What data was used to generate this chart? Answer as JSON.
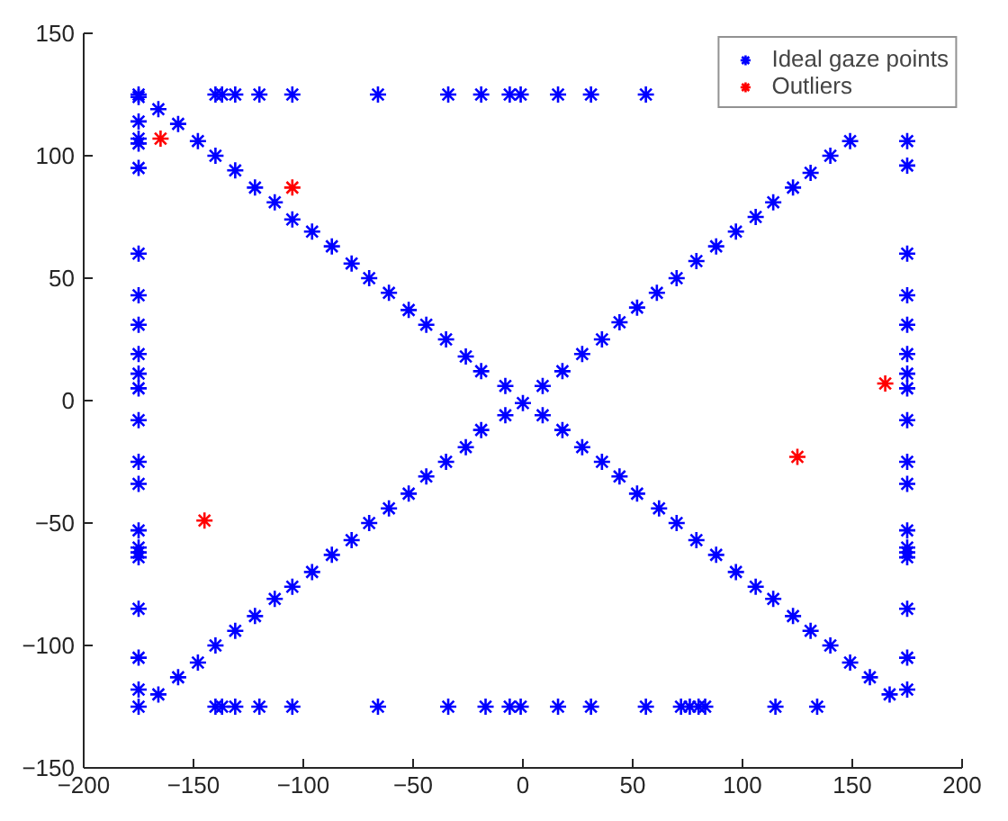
{
  "chart_data": {
    "type": "scatter",
    "xlim": [
      -200,
      200
    ],
    "ylim": [
      -150,
      150
    ],
    "xticks": [
      -200,
      -150,
      -100,
      -50,
      0,
      50,
      100,
      150,
      200
    ],
    "yticks": [
      -150,
      -100,
      -50,
      0,
      50,
      100,
      150
    ],
    "marker": "cross",
    "legend": "top right",
    "series": [
      {
        "name": "Ideal gaze points",
        "color": "#0000ff",
        "x": [
          -140,
          -137,
          -131,
          -120,
          -105,
          -66,
          -34,
          -19,
          -6,
          -1,
          16,
          31,
          56,
          -140,
          -137,
          -131,
          -120,
          -105,
          -66,
          -34,
          -17,
          -6,
          -1,
          16,
          31,
          56,
          72,
          76,
          80,
          83,
          115,
          134,
          -175,
          -175,
          -175,
          -175,
          -175,
          -175,
          -175,
          -175,
          -175,
          -175,
          -175,
          -175,
          -175,
          -175,
          -175,
          -175,
          -175,
          -175,
          -175,
          -175,
          -175,
          -175,
          -175,
          175,
          175,
          175,
          175,
          175,
          175,
          175,
          175,
          175,
          175,
          175,
          175,
          175,
          175,
          175,
          175,
          175,
          175,
          -166,
          -157,
          -148,
          -140,
          -131,
          -122,
          -113,
          -105,
          -96,
          -87,
          -78,
          -70,
          -61,
          -52,
          -44,
          -35,
          -26,
          -19,
          -8,
          0,
          9,
          18,
          27,
          36,
          44,
          52,
          62,
          70,
          79,
          88,
          97,
          106,
          114,
          123,
          131,
          140,
          149,
          158,
          167,
          -166,
          -157,
          -148,
          -140,
          -131,
          -122,
          -113,
          -105,
          -96,
          -87,
          -78,
          -70,
          -61,
          -52,
          -44,
          -35,
          -26,
          -19,
          -8,
          9,
          18,
          27,
          36,
          44,
          52,
          61,
          70,
          79,
          88,
          97,
          106,
          114,
          123,
          131,
          140,
          149
        ],
        "values": [
          125,
          125,
          125,
          125,
          125,
          125,
          125,
          125,
          125,
          125,
          125,
          125,
          125,
          -125,
          -125,
          -125,
          -125,
          -125,
          -125,
          -125,
          -125,
          -125,
          -125,
          -125,
          -125,
          -125,
          -125,
          -125,
          -125,
          -125,
          -125,
          -125,
          125,
          124,
          114,
          107,
          105,
          95,
          60,
          43,
          31,
          19,
          11,
          5,
          -8,
          -25,
          -34,
          -53,
          -60,
          -62,
          -64,
          -85,
          -105,
          -118,
          -125,
          106,
          96,
          60,
          43,
          31,
          19,
          11,
          5,
          -8,
          -25,
          -34,
          -53,
          -60,
          -62,
          -64,
          -85,
          -105,
          -118,
          119,
          113,
          106,
          100,
          94,
          87,
          81,
          74,
          69,
          63,
          56,
          50,
          44,
          37,
          31,
          25,
          18,
          12,
          6,
          -1,
          -6,
          -12,
          -19,
          -25,
          -31,
          -38,
          -44,
          -50,
          -57,
          -63,
          -70,
          -76,
          -81,
          -88,
          -94,
          -100,
          -107,
          -113,
          -120,
          -120,
          -113,
          -107,
          -100,
          -94,
          -88,
          -81,
          -76,
          -70,
          -63,
          -57,
          -50,
          -44,
          -38,
          -31,
          -25,
          -19,
          -12,
          -6,
          6,
          12,
          19,
          25,
          32,
          38,
          44,
          50,
          57,
          63,
          69,
          75,
          81,
          87,
          93,
          100,
          106
        ]
      },
      {
        "name": "Outliers",
        "color": "#ff0000",
        "x": [
          -165,
          -105,
          -145,
          125,
          165
        ],
        "values": [
          107,
          87,
          -49,
          -23,
          7
        ]
      }
    ]
  }
}
